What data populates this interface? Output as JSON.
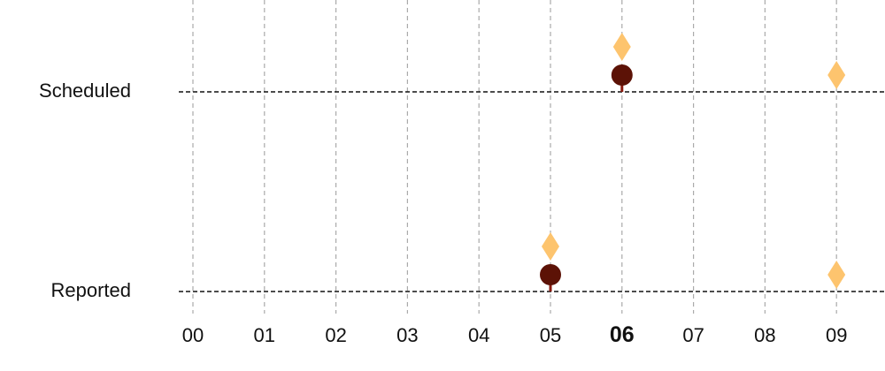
{
  "chart_data": {
    "type": "scatter",
    "title": "",
    "xlabel": "",
    "ylabel": "",
    "x_ticks": [
      "00",
      "01",
      "02",
      "03",
      "04",
      "05",
      "06",
      "07",
      "08",
      "09"
    ],
    "highlighted_tick": "06",
    "xlim": [
      -0.2,
      9.7
    ],
    "rows": [
      "Scheduled",
      "Reported"
    ],
    "grid": "vertical dashed",
    "colors": {
      "circle": "#5c1206",
      "diamond": "#fdc46e",
      "stem": "#8b1a0e",
      "baseline": "#111111",
      "grid": "#aaaaaa"
    },
    "series": [
      {
        "marker": "circle",
        "points": [
          {
            "row": "Scheduled",
            "x": 6
          },
          {
            "row": "Reported",
            "x": 5
          }
        ]
      },
      {
        "marker": "diamond",
        "points": [
          {
            "row": "Scheduled",
            "x": 6
          },
          {
            "row": "Scheduled",
            "x": 9
          },
          {
            "row": "Reported",
            "x": 5
          },
          {
            "row": "Reported",
            "x": 9
          }
        ]
      }
    ]
  }
}
